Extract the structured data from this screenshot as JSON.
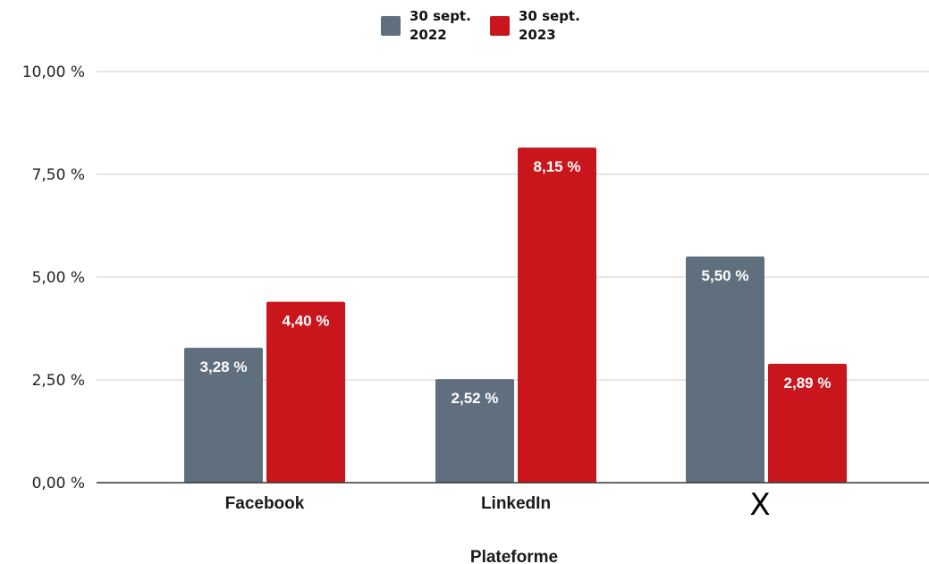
{
  "chart_data": {
    "type": "bar",
    "categories": [
      "Facebook",
      "LinkedIn",
      "X"
    ],
    "series": [
      {
        "name": "30 sept. 2022",
        "color": "#5f6f7e",
        "values": [
          3.28,
          2.52,
          5.5
        ],
        "labels": [
          "3,28 %",
          "2,52 %",
          "5,50 %"
        ]
      },
      {
        "name": "30 sept. 2023",
        "color": "#c8161c",
        "values": [
          4.4,
          8.15,
          2.89
        ],
        "labels": [
          "4,40 %",
          "8,15 %",
          "2,89 %"
        ]
      }
    ],
    "ylim": [
      0,
      10
    ],
    "yticks": [
      0,
      2.5,
      5,
      7.5,
      10
    ],
    "ytick_labels": [
      "0,00 %",
      "2,50 %",
      "5,00 %",
      "7,50 %",
      "10,00 %"
    ],
    "xlabel": "Plateforme",
    "ylabel": "",
    "title": "",
    "grid": true,
    "legend_position": "top-center"
  },
  "legend": {
    "items": [
      {
        "label": "30 sept. 2022",
        "color": "#5f6f7e"
      },
      {
        "label": "30 sept. 2023",
        "color": "#c8161c"
      }
    ]
  }
}
